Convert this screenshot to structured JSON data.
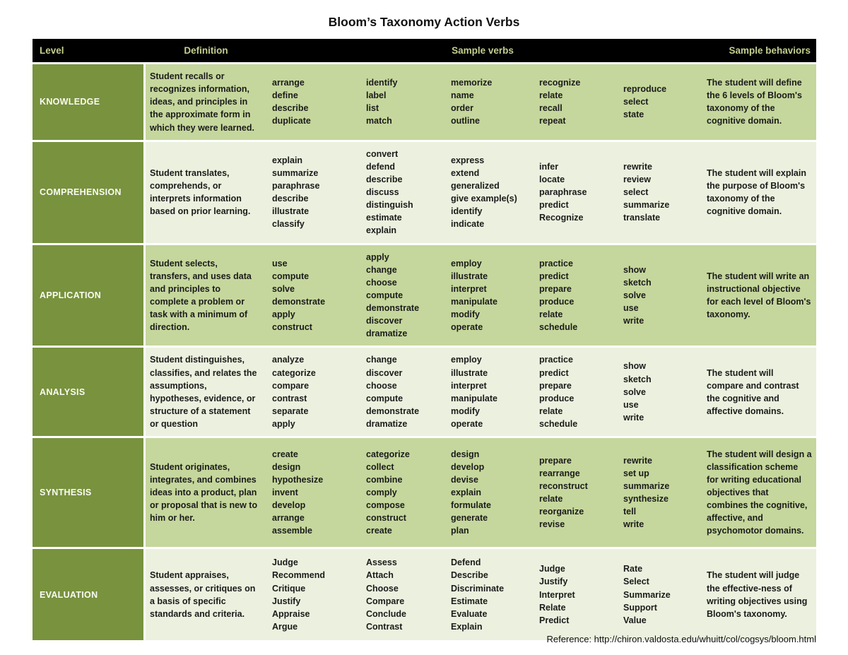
{
  "title": "Bloom’s Taxonomy Action Verbs",
  "reference": "Reference: http://chiron.valdosta.edu/whuitt/col/cogsys/bloom.html",
  "colors": {
    "header_bg": "#000000",
    "header_text": "#c3cf8e",
    "level_cell_bg": "#78923e",
    "row_green_medium": "#c5d79c",
    "row_green_light": "#ebf1de",
    "body_text": "#1b1b1b",
    "level_text": "#fbfbf2"
  },
  "header": {
    "level": "Level",
    "definition": "Definition",
    "sample_verbs": "Sample verbs",
    "sample_behaviors": "Sample behaviors"
  },
  "rows": [
    {
      "level": "KNOWLEDGE",
      "definition": "Student recalls or recognizes information, ideas, and principles in the approximate form in which they were learned.",
      "verb_columns": [
        [
          "arrange",
          "define",
          "describe",
          "duplicate"
        ],
        [
          "identify",
          "label",
          "list",
          "match"
        ],
        [
          "memorize",
          "name",
          "order",
          "outline"
        ],
        [
          "recognize",
          "relate",
          "recall",
          "repeat"
        ],
        [
          "reproduce",
          "select",
          "state"
        ]
      ],
      "behavior": "The student will define the 6 levels of Bloom's taxonomy of the cognitive domain."
    },
    {
      "level": "COMPREHENSION",
      "definition": "Student translates, comprehends, or interprets information based on prior learning.",
      "verb_columns": [
        [
          "explain",
          "summarize",
          "paraphrase",
          "describe",
          "illustrate",
          "classify"
        ],
        [
          "convert",
          "defend",
          "describe",
          "discuss",
          "distinguish",
          "estimate",
          "explain"
        ],
        [
          "express",
          "extend",
          "generalized",
          "give example(s)",
          "identify",
          "indicate"
        ],
        [
          "infer",
          "locate",
          "paraphrase",
          "predict",
          "Recognize"
        ],
        [
          "rewrite",
          "review",
          "select",
          "summarize",
          "translate"
        ]
      ],
      "behavior": "The student will explain the purpose of Bloom's taxonomy of the cognitive domain."
    },
    {
      "level": "APPLICATION",
      "definition": "Student selects, transfers, and uses data and principles to complete a problem or task with a minimum of direction.",
      "verb_columns": [
        [
          "use",
          "compute",
          "solve",
          "demonstrate",
          "apply",
          "construct"
        ],
        [
          "apply",
          "change",
          "choose",
          "compute",
          "demonstrate",
          "discover",
          "dramatize"
        ],
        [
          "employ",
          "illustrate",
          "interpret",
          "manipulate",
          "modify",
          "operate"
        ],
        [
          "practice",
          "predict",
          "prepare",
          "produce",
          "relate",
          "schedule"
        ],
        [
          "show",
          "sketch",
          "solve",
          "use",
          "write"
        ]
      ],
      "behavior": "The student will write an instructional objective for each level of Bloom's taxonomy."
    },
    {
      "level": "ANALYSIS",
      "definition": "Student distinguishes, classifies, and relates the assumptions, hypotheses, evidence, or structure of a statement or question",
      "verb_columns": [
        [
          "analyze",
          "categorize",
          "compare",
          "contrast",
          "separate",
          "apply"
        ],
        [
          "change",
          "discover",
          "choose",
          "compute",
          "demonstrate",
          "dramatize"
        ],
        [
          "employ",
          "illustrate",
          "interpret",
          "manipulate",
          "modify",
          "operate"
        ],
        [
          "practice",
          "predict",
          "prepare",
          "produce",
          "relate",
          "schedule"
        ],
        [
          "show",
          "sketch",
          "solve",
          "use",
          "write"
        ]
      ],
      "behavior": "The student will compare and contrast the cognitive and affective domains."
    },
    {
      "level": "SYNTHESIS",
      "definition": "Student originates, integrates, and combines ideas into a product, plan or proposal that is new to him or her.",
      "verb_columns": [
        [
          "create",
          "design",
          "hypothesize",
          "invent",
          "develop",
          "arrange",
          "assemble"
        ],
        [
          "categorize",
          "collect",
          "combine",
          "comply",
          "compose",
          "construct",
          "create"
        ],
        [
          "design",
          "develop",
          "devise",
          "explain",
          "formulate",
          "generate",
          "plan"
        ],
        [
          "prepare",
          "rearrange",
          "reconstruct",
          "relate",
          "reorganize",
          "revise"
        ],
        [
          "rewrite",
          "set up",
          "summarize",
          "synthesize",
          "tell",
          "write"
        ]
      ],
      "behavior": "The student will design a classification scheme for writing educational objectives that combines the cognitive, affective, and psychomotor domains."
    },
    {
      "level": "EVALUATION",
      "definition": "Student appraises, assesses, or critiques on a basis of specific standards and criteria.",
      "verb_columns": [
        [
          "Judge",
          "Recommend",
          "Critique",
          "Justify",
          "Appraise",
          "Argue"
        ],
        [
          "Assess",
          "Attach",
          "Choose",
          "Compare",
          "Conclude",
          "Contrast"
        ],
        [
          "Defend",
          "Describe",
          "Discriminate",
          "Estimate",
          "Evaluate",
          "Explain"
        ],
        [
          "Judge",
          "Justify",
          "Interpret",
          "Relate",
          "Predict"
        ],
        [
          "Rate",
          "Select",
          "Summarize",
          "Support",
          "Value"
        ]
      ],
      "behavior": "The student will judge the effective-ness of writing objectives using Bloom's taxonomy."
    }
  ]
}
